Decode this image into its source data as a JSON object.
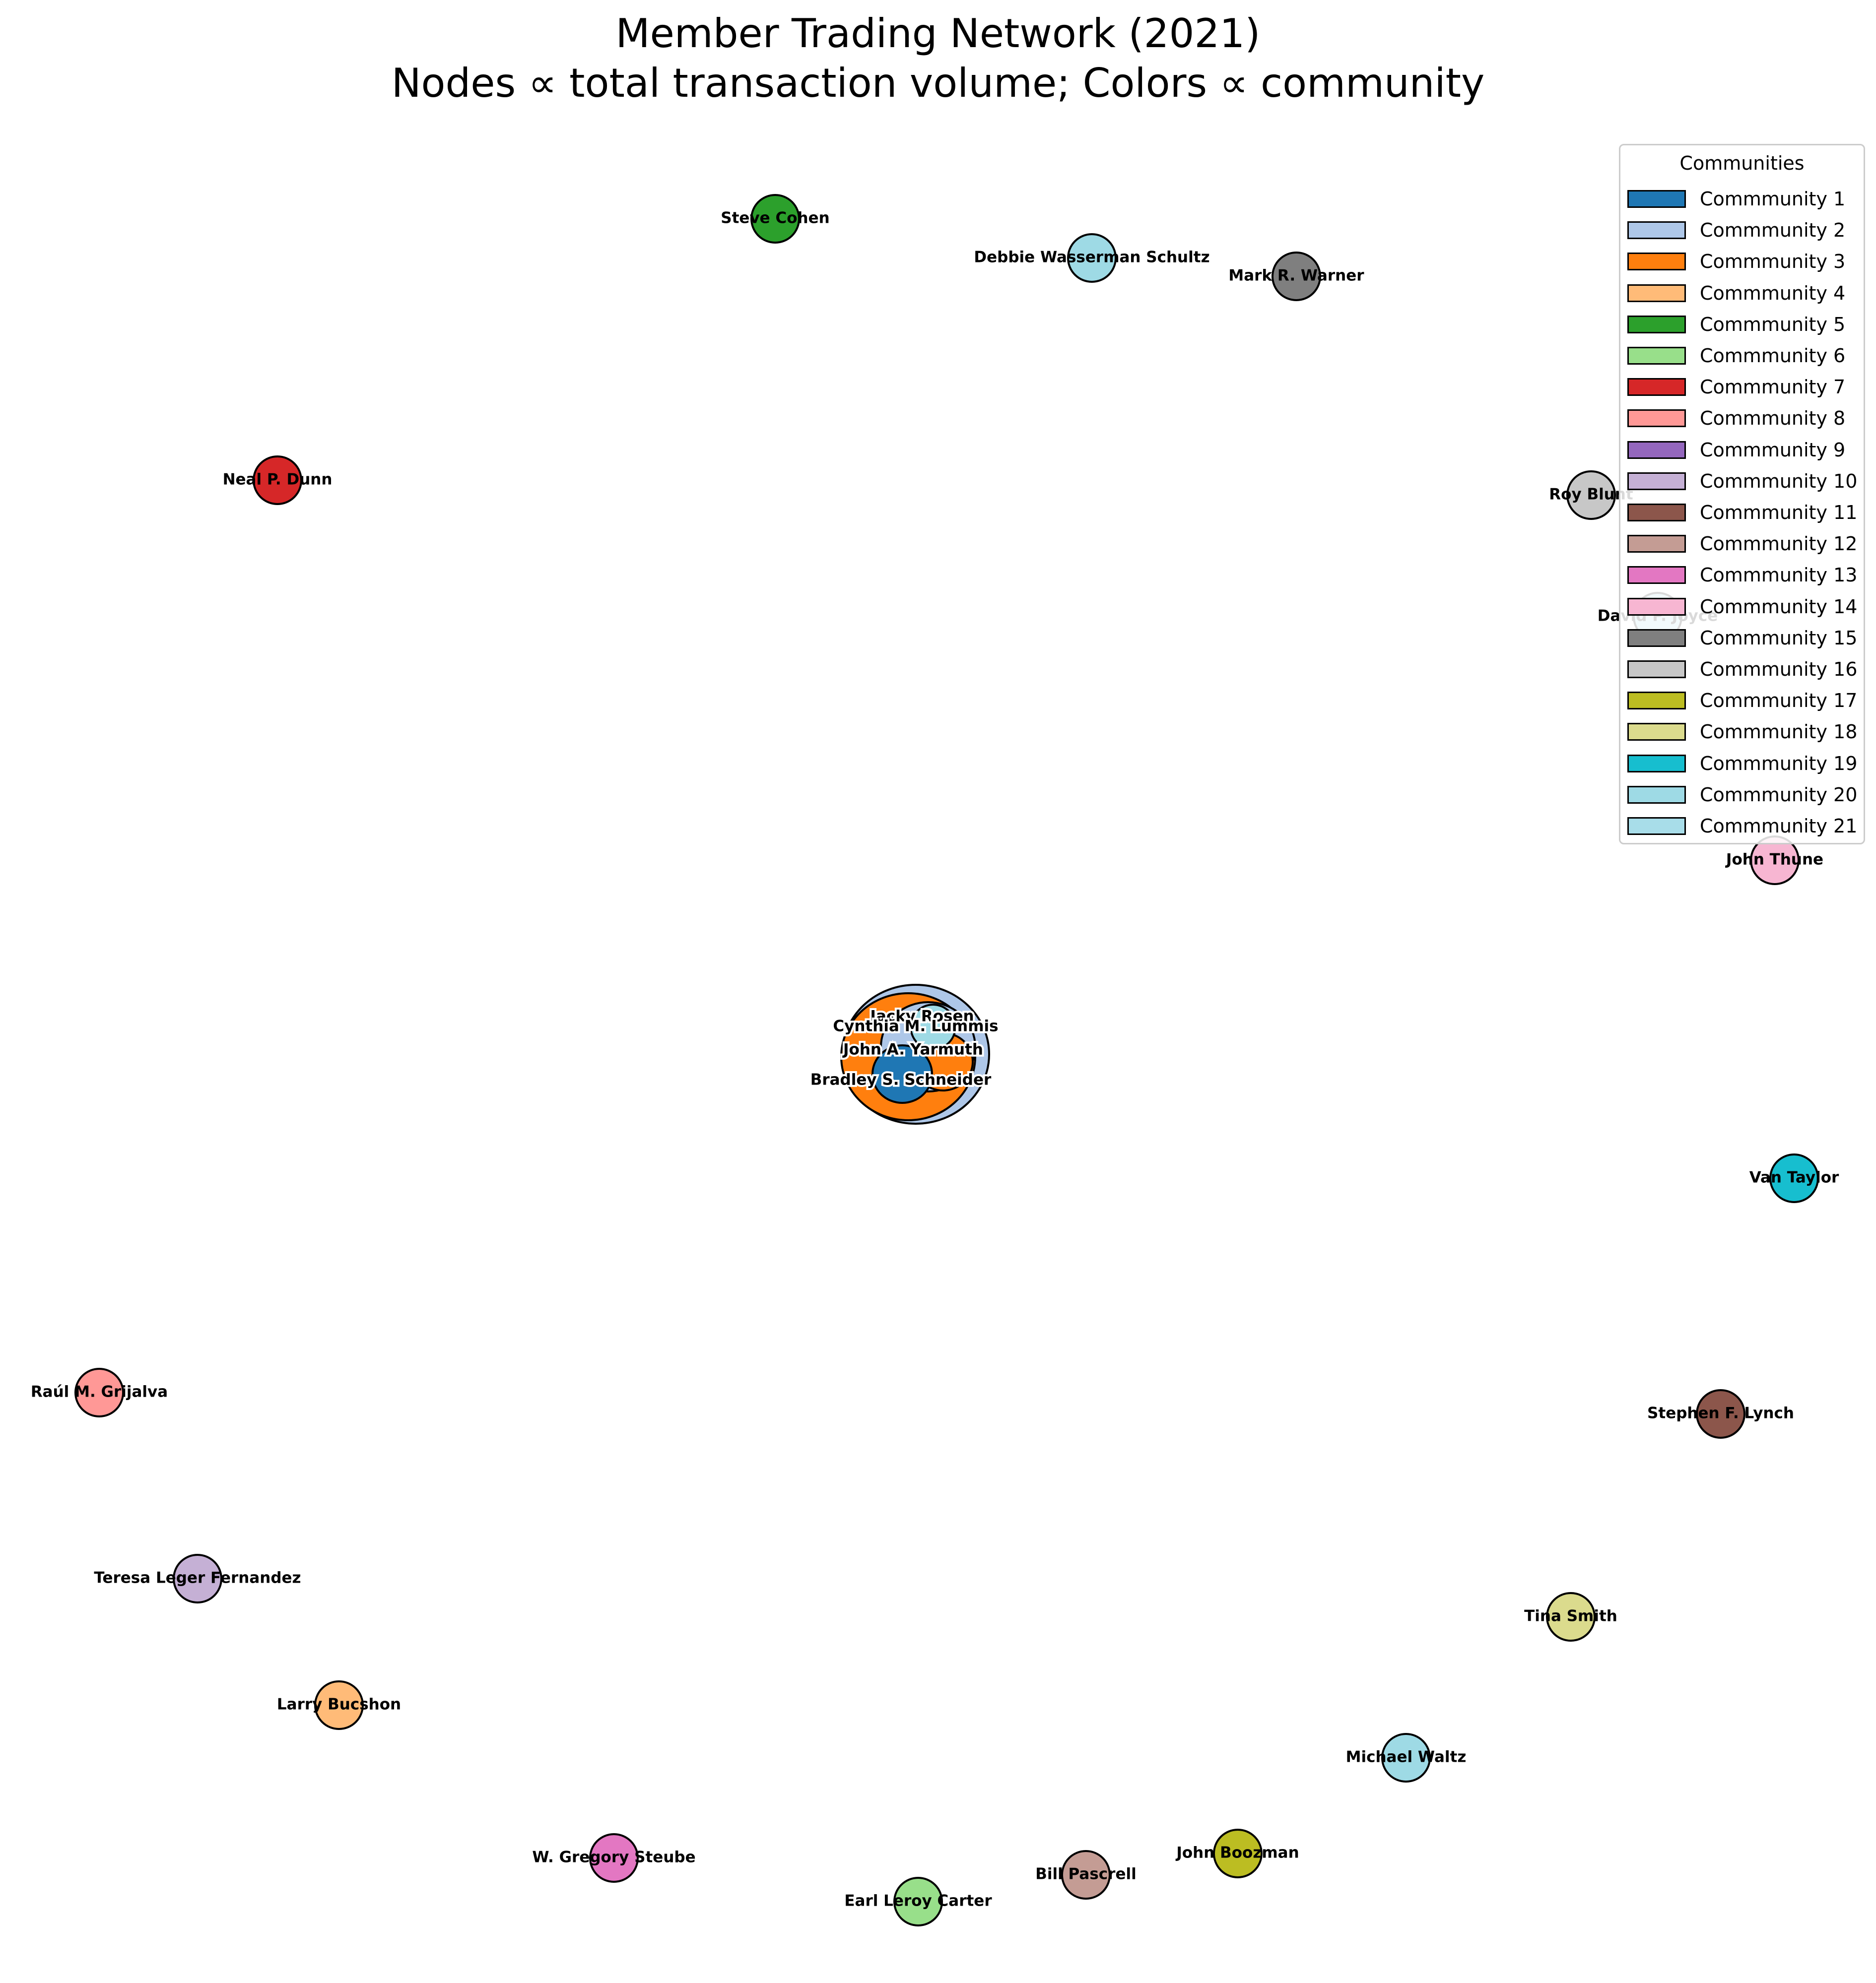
{
  "title": {
    "line1": "Member Trading Network (2021)",
    "line2": "Nodes ∝ total transaction volume; Colors ∝ community"
  },
  "legend": {
    "title": "Communities",
    "items": [
      {
        "label": "Commmunity 1",
        "color": "#1f77b4"
      },
      {
        "label": "Commmunity 2",
        "color": "#aec7e8"
      },
      {
        "label": "Commmunity 3",
        "color": "#ff7f0e"
      },
      {
        "label": "Commmunity 4",
        "color": "#ffbb78"
      },
      {
        "label": "Commmunity 5",
        "color": "#2ca02c"
      },
      {
        "label": "Commmunity 6",
        "color": "#98df8a"
      },
      {
        "label": "Commmunity 7",
        "color": "#d62728"
      },
      {
        "label": "Commmunity 8",
        "color": "#ff9896"
      },
      {
        "label": "Commmunity 9",
        "color": "#9467bd"
      },
      {
        "label": "Commmunity 10",
        "color": "#c5b0d5"
      },
      {
        "label": "Commmunity 11",
        "color": "#8c564b"
      },
      {
        "label": "Commmunity 12",
        "color": "#c49c94"
      },
      {
        "label": "Commmunity 13",
        "color": "#e377c2"
      },
      {
        "label": "Commmunity 14",
        "color": "#f7b6d2"
      },
      {
        "label": "Commmunity 15",
        "color": "#7f7f7f"
      },
      {
        "label": "Commmunity 16",
        "color": "#c7c7c7"
      },
      {
        "label": "Commmunity 17",
        "color": "#bcbd22"
      },
      {
        "label": "Commmunity 18",
        "color": "#dbdb8d"
      },
      {
        "label": "Commmunity 19",
        "color": "#17becf"
      },
      {
        "label": "Commmunity 20",
        "color": "#9edae5"
      },
      {
        "label": "Commmunity 21",
        "color": "#a8dde9"
      }
    ]
  },
  "nodes": [
    {
      "label": "Steve Cohen",
      "community": 5
    },
    {
      "label": "Debbie Wasserman Schultz",
      "community": 20
    },
    {
      "label": "Mark R. Warner",
      "community": 15
    },
    {
      "label": "Neal P. Dunn",
      "community": 7
    },
    {
      "label": "Roy Blunt",
      "community": 16
    },
    {
      "label": "David P. Joyce",
      "community": 21
    },
    {
      "label": "John Thune",
      "community": 14
    },
    {
      "label": "Van Taylor",
      "community": 19
    },
    {
      "label": "Stephen F. Lynch",
      "community": 11
    },
    {
      "label": "Raúl M. Grijalva",
      "community": 8
    },
    {
      "label": "Teresa Leger Fernandez",
      "community": 10
    },
    {
      "label": "Tina Smith",
      "community": 18
    },
    {
      "label": "Larry Bucshon",
      "community": 4
    },
    {
      "label": "Michael Waltz",
      "community": 20
    },
    {
      "label": "John Boozman",
      "community": 17
    },
    {
      "label": "W. Gregory Steube",
      "community": 13
    },
    {
      "label": "Bill Pascrell",
      "community": 12
    },
    {
      "label": "Earl Leroy Carter",
      "community": 6
    },
    {
      "label": "Jacky Rosen",
      "community": 2
    },
    {
      "label": "Cynthia M. Lummis",
      "community": 2
    },
    {
      "label": "John A. Yarmuth",
      "community": 2
    },
    {
      "label": "Bradley S. Schneider",
      "community": 3
    }
  ]
}
